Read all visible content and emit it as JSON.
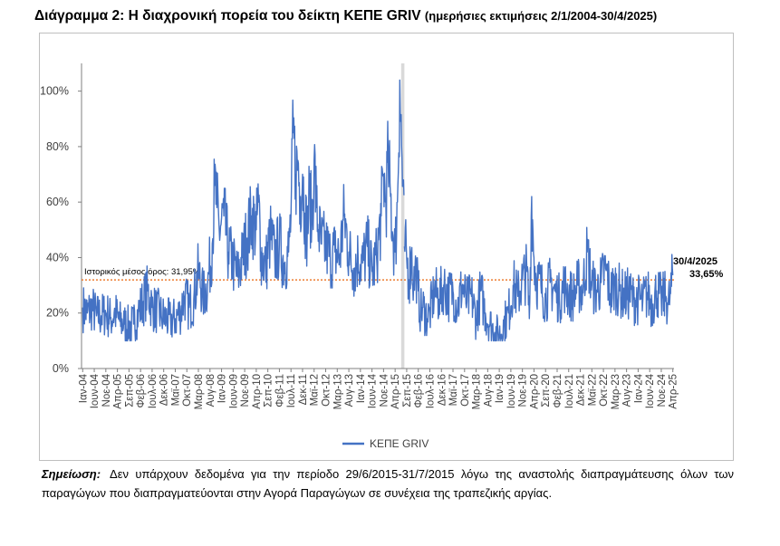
{
  "page": {
    "title": "Διάγραμμα 2: Η διαχρονική πορεία του δείκτη ΚΕΠΕ GRIV",
    "subtitle": "(ημερήσιες εκτιμήσεις 2/1/2004-30/4/2025)",
    "note_label": "Σημείωση:",
    "note_text": "Δεν υπάρχουν δεδομένα για την περίοδο 29/6/2015-31/7/2015 λόγω της αναστολής διαπραγμάτευσης όλων των παραγώγων που διαπραγματεύονται στην Αγορά Παραγώγων σε συνέχεια της τραπεζικής αργίας."
  },
  "colors": {
    "series": "#4472c4",
    "mean_line": "#ed7d31",
    "gap_band": "#d9d9d9",
    "axis": "#7f7f7f"
  },
  "chart_data": {
    "type": "line",
    "title": "",
    "xlabel": "",
    "ylabel": "",
    "y_tick_labels": [
      "0%",
      "20%",
      "40%",
      "60%",
      "80%",
      "100%"
    ],
    "ylim": [
      0,
      1.1
    ],
    "x_tick_labels": [
      "Ιαν-04",
      "Ιουν-04",
      "Νοε-04",
      "Απρ-05",
      "Σεπ-05",
      "Φεβ-06",
      "Ιουλ-06",
      "Δεκ-06",
      "Μαϊ-07",
      "Οκτ-07",
      "Μαρ-08",
      "Αυγ-08",
      "Ιαν-09",
      "Ιουν-09",
      "Νοε-09",
      "Απρ-10",
      "Σεπ-10",
      "Φεβ-11",
      "Ιουλ-11",
      "Δεκ-11",
      "Μαϊ-12",
      "Οκτ-12",
      "Μαρ-13",
      "Αυγ-13",
      "Ιαν-14",
      "Ιουν-14",
      "Νοε-14",
      "Απρ-15",
      "Σεπ-15",
      "Φεβ-16",
      "Ιουλ-16",
      "Δεκ-16",
      "Μαϊ-17",
      "Οκτ-17",
      "Μαρ-18",
      "Αυγ-18",
      "Ιαν-19",
      "Ιουν-19",
      "Νοε-19",
      "Απρ-20",
      "Σεπ-20",
      "Φεβ-21",
      "Ιουλ-21",
      "Δεκ-21",
      "Μαϊ-22",
      "Οκτ-22",
      "Μαρ-23",
      "Αυγ-23",
      "Ιαν-24",
      "Ιουν-24",
      "Νοε-24",
      "Απρ-25"
    ],
    "grid": false,
    "legend": {
      "position": "bottom",
      "entries": [
        "ΚΕΠΕ GRIV"
      ]
    },
    "series": [
      {
        "name": "ΚΕΠΕ GRIV",
        "x": [
          "2004-01",
          "2004-03",
          "2004-05",
          "2004-07",
          "2004-09",
          "2004-11",
          "2005-01",
          "2005-03",
          "2005-05",
          "2005-07",
          "2005-09",
          "2005-11",
          "2006-01",
          "2006-03",
          "2006-05",
          "2006-07",
          "2006-09",
          "2006-11",
          "2007-01",
          "2007-03",
          "2007-05",
          "2007-07",
          "2007-09",
          "2007-11",
          "2008-01",
          "2008-03",
          "2008-05",
          "2008-07",
          "2008-09",
          "2008-10",
          "2008-11",
          "2008-12",
          "2009-02",
          "2009-04",
          "2009-06",
          "2009-08",
          "2009-10",
          "2009-12",
          "2010-02",
          "2010-04",
          "2010-05",
          "2010-06",
          "2010-08",
          "2010-10",
          "2010-12",
          "2011-02",
          "2011-04",
          "2011-06",
          "2011-07",
          "2011-08",
          "2011-09",
          "2011-10",
          "2011-11",
          "2011-12",
          "2012-01",
          "2012-02",
          "2012-03",
          "2012-04",
          "2012-05",
          "2012-06",
          "2012-07",
          "2012-08",
          "2012-10",
          "2012-12",
          "2013-02",
          "2013-04",
          "2013-06",
          "2013-08",
          "2013-10",
          "2013-12",
          "2014-02",
          "2014-04",
          "2014-06",
          "2014-08",
          "2014-10",
          "2014-11",
          "2014-12",
          "2015-01",
          "2015-02",
          "2015-03",
          "2015-04",
          "2015-05",
          "2015-06",
          "2015-08",
          "2015-09",
          "2015-10",
          "2015-11",
          "2015-12",
          "2016-01",
          "2016-02",
          "2016-03",
          "2016-04",
          "2016-06",
          "2016-07",
          "2016-09",
          "2016-11",
          "2017-01",
          "2017-03",
          "2017-05",
          "2017-07",
          "2017-09",
          "2017-11",
          "2018-01",
          "2018-03",
          "2018-05",
          "2018-07",
          "2018-09",
          "2018-11",
          "2019-01",
          "2019-03",
          "2019-05",
          "2019-07",
          "2019-09",
          "2019-11",
          "2020-01",
          "2020-02",
          "2020-03",
          "2020-04",
          "2020-05",
          "2020-07",
          "2020-09",
          "2020-11",
          "2021-01",
          "2021-03",
          "2021-05",
          "2021-07",
          "2021-09",
          "2021-11",
          "2022-01",
          "2022-03",
          "2022-05",
          "2022-07",
          "2022-09",
          "2022-11",
          "2023-01",
          "2023-03",
          "2023-05",
          "2023-07",
          "2023-09",
          "2023-11",
          "2024-01",
          "2024-03",
          "2024-05",
          "2024-07",
          "2024-09",
          "2024-11",
          "2025-01",
          "2025-02",
          "2025-03",
          "2025-04"
        ],
        "values": [
          0.22,
          0.2,
          0.22,
          0.19,
          0.19,
          0.2,
          0.18,
          0.2,
          0.17,
          0.16,
          0.15,
          0.16,
          0.2,
          0.24,
          0.28,
          0.22,
          0.21,
          0.19,
          0.18,
          0.17,
          0.18,
          0.2,
          0.26,
          0.22,
          0.25,
          0.35,
          0.26,
          0.3,
          0.45,
          0.66,
          0.58,
          0.5,
          0.55,
          0.42,
          0.38,
          0.33,
          0.4,
          0.47,
          0.55,
          0.5,
          0.6,
          0.42,
          0.36,
          0.48,
          0.4,
          0.45,
          0.38,
          0.42,
          0.55,
          0.85,
          0.7,
          0.75,
          0.62,
          0.7,
          0.56,
          0.48,
          0.63,
          0.52,
          0.75,
          0.58,
          0.5,
          0.45,
          0.44,
          0.4,
          0.42,
          0.4,
          0.55,
          0.42,
          0.36,
          0.4,
          0.38,
          0.44,
          0.35,
          0.4,
          0.55,
          0.7,
          0.6,
          0.75,
          0.62,
          0.48,
          0.42,
          0.6,
          1.04,
          0.44,
          0.4,
          0.32,
          0.42,
          0.3,
          0.36,
          0.28,
          0.2,
          0.22,
          0.18,
          0.2,
          0.28,
          0.25,
          0.3,
          0.26,
          0.28,
          0.22,
          0.3,
          0.24,
          0.26,
          0.18,
          0.28,
          0.2,
          0.16,
          0.13,
          0.12,
          0.16,
          0.2,
          0.3,
          0.26,
          0.32,
          0.35,
          0.18,
          0.62,
          0.4,
          0.32,
          0.3,
          0.25,
          0.31,
          0.28,
          0.25,
          0.3,
          0.27,
          0.26,
          0.3,
          0.28,
          0.42,
          0.3,
          0.28,
          0.31,
          0.36,
          0.27,
          0.3,
          0.28,
          0.26,
          0.27,
          0.25,
          0.25,
          0.24,
          0.27,
          0.23,
          0.28,
          0.25,
          0.26,
          0.23,
          0.27,
          0.3365
        ]
      }
    ],
    "gap_period": {
      "label": "",
      "from": "2015-06",
      "to": "2015-08"
    },
    "annotations": {
      "mean_label": "Ιστορικός μέσος όρος: 31,95%",
      "mean_value": 0.3195,
      "last_date_label": "30/4/2025",
      "last_value_label": "33,65%",
      "last_value": 0.3365
    }
  }
}
